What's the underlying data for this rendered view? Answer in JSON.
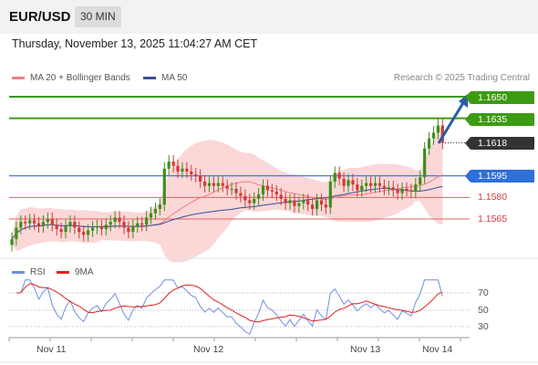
{
  "header": {
    "pair": "EUR/USD",
    "timeframe": "30 MIN"
  },
  "date": "Thursday, November 13, 2025 11:04:27 AM CET",
  "legend": {
    "ma20": "MA 20 + Bollinger Bands",
    "ma50": "MA 50",
    "copyright": "Research © 2025 Trading Central"
  },
  "levels": {
    "r2": "1.1650",
    "r1": "1.1635",
    "current": "1.1618",
    "pivot": "1.1595",
    "s1": "1.1580",
    "s2": "1.1565"
  },
  "rsi_legend": {
    "rsi": "RSI",
    "ma": "9MA"
  },
  "rsi_scale": [
    "70",
    "50",
    "30"
  ],
  "x_axis": [
    "Nov 11",
    "Nov 12",
    "Nov 13",
    "Nov 14"
  ],
  "colors": {
    "resistance": "#3d9a13",
    "pivot": "#2e6fd8",
    "support": "#e06464",
    "current": "#333333",
    "arrow": "#2a5ca8",
    "ma20": "#f08080",
    "ma50": "#3a4f9a",
    "rsi": "#6f8fe0",
    "rsi_ma": "#e02020"
  },
  "chart_data": {
    "type": "candlestick",
    "instrument": "EUR/USD",
    "interval": "30 MIN",
    "ylim": [
      1.154,
      1.1656
    ],
    "closes": [
      1.1551,
      1.1559,
      1.1563,
      1.1562,
      1.1564,
      1.1562,
      1.156,
      1.1563,
      1.1565,
      1.1561,
      1.1558,
      1.1556,
      1.156,
      1.1563,
      1.1559,
      1.1556,
      1.1554,
      1.1557,
      1.1559,
      1.156,
      1.1558,
      1.1561,
      1.1563,
      1.1566,
      1.1563,
      1.1559,
      1.1556,
      1.156,
      1.1562,
      1.1561,
      1.1566,
      1.1569,
      1.1572,
      1.1575,
      1.16,
      1.1605,
      1.1602,
      1.1598,
      1.16,
      1.1598,
      1.1596,
      1.1595,
      1.1591,
      1.1588,
      1.159,
      1.1588,
      1.159,
      1.1588,
      1.1586,
      1.1586,
      1.1583,
      1.1581,
      1.1578,
      1.1576,
      1.1579,
      1.1582,
      1.1588,
      1.1585,
      1.1584,
      1.1582,
      1.1579,
      1.1576,
      1.1578,
      1.1574,
      1.1576,
      1.1578,
      1.1575,
      1.1572,
      1.1578,
      1.1575,
      1.1573,
      1.1591,
      1.1597,
      1.1593,
      1.1588,
      1.1592,
      1.1589,
      1.1585,
      1.1588,
      1.159,
      1.1588,
      1.159,
      1.1588,
      1.1586,
      1.1587,
      1.1585,
      1.1583,
      1.1586,
      1.1585,
      1.1584,
      1.1589,
      1.1594,
      1.1614,
      1.1621,
      1.1625,
      1.163,
      1.1618
    ],
    "moving_averages": [
      {
        "name": "MA 20 + Bollinger Bands"
      },
      {
        "name": "MA 50"
      }
    ],
    "levels": [
      1.165,
      1.1635,
      1.1618,
      1.1595,
      1.158,
      1.1565
    ]
  }
}
